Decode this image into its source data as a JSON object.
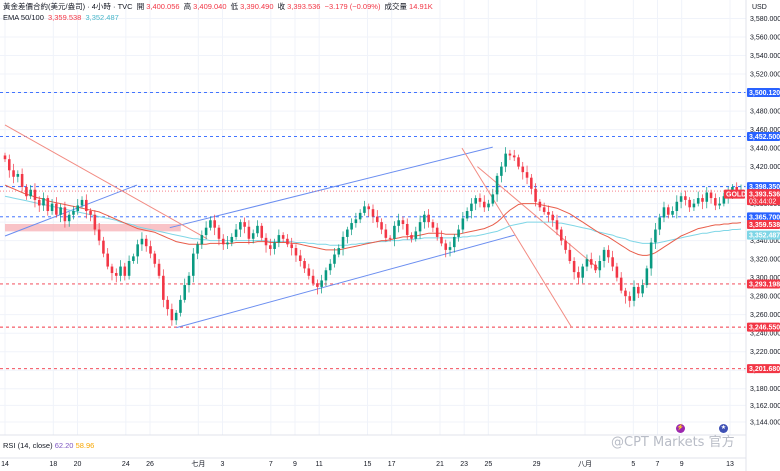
{
  "header": {
    "line1_title": "黃金差價合約(美元/盎司) · 4小時 · TVC",
    "open_label": "開",
    "open": "3,400.056",
    "high_label": "高",
    "high": "3,409.040",
    "low_label": "低",
    "low": "3,390.490",
    "close_label": "收",
    "close": "3,393.536",
    "change": "−3.179 (−0.09%)",
    "volume_label": "成交量",
    "volume": "14.91K",
    "ema_label": "EMA 50/100",
    "ema50": "3,359.538",
    "ema100": "3,352.487"
  },
  "currency": "USD",
  "rsi": {
    "label": "RSI (14, close)",
    "v1": "62.20",
    "v2": "58.96"
  },
  "watermark": "@CPT Markets 官方",
  "colors": {
    "up": "#089981",
    "down": "#f23645",
    "ema50": "#e85d4a",
    "ema100": "#7fd6e6",
    "channel": "#6b8ef0",
    "trend": "#f28b82",
    "hline_blue": "#2962ff",
    "hline_red": "#f23645",
    "gold_tag": "#f23645"
  },
  "chart_data": {
    "type": "candlestick",
    "symbol": "GOLD",
    "timeframe": "4h",
    "ylim": [
      3130,
      3600
    ],
    "yticks": [
      3144.0,
      3162.0,
      3180.0,
      3200.0,
      3220.0,
      3240.0,
      3260.0,
      3280.0,
      3300.0,
      3320.0,
      3340.0,
      3360.0,
      3380.0,
      3400.0,
      3420.0,
      3440.0,
      3460.0,
      3480.0,
      3500.0,
      3520.0,
      3540.0,
      3560.0,
      3580.0
    ],
    "ytick_labels": [
      "3,144.000",
      "3,162.000",
      "3,180.000",
      "3,200.000",
      "3,220.000",
      "3,240.000",
      "3,260.000",
      "3,280.000",
      "3,300.000",
      "3,320.000",
      "3,340.000",
      "3,360.000",
      "3,380.000",
      "3,400.000",
      "3,420.000",
      "3,440.000",
      "3,460.000",
      "3,480.000",
      "3,500.000",
      "3,520.000",
      "3,540.000",
      "3,560.000",
      "3,580.000"
    ],
    "xticks": [
      {
        "label": "14",
        "x": 0
      },
      {
        "label": "18",
        "x": 22
      },
      {
        "label": "20",
        "x": 33
      },
      {
        "label": "24",
        "x": 55
      },
      {
        "label": "26",
        "x": 66
      },
      {
        "label": "七月",
        "x": 88
      },
      {
        "label": "3",
        "x": 99
      },
      {
        "label": "7",
        "x": 121
      },
      {
        "label": "9",
        "x": 132
      },
      {
        "label": "11",
        "x": 143
      },
      {
        "label": "15",
        "x": 165
      },
      {
        "label": "17",
        "x": 176
      },
      {
        "label": "21",
        "x": 198
      },
      {
        "label": "23",
        "x": 209
      },
      {
        "label": "25",
        "x": 220
      },
      {
        "label": "29",
        "x": 242
      },
      {
        "label": "八月",
        "x": 264
      },
      {
        "label": "5",
        "x": 286
      },
      {
        "label": "7",
        "x": 297
      },
      {
        "label": "9",
        "x": 308
      },
      {
        "label": "13",
        "x": 330
      }
    ],
    "bar_range": [
      0,
      335
    ],
    "closes": [
      3428,
      3416,
      3409,
      3412,
      3398,
      3388,
      3395,
      3384,
      3378,
      3386,
      3372,
      3380,
      3368,
      3376,
      3361,
      3368,
      3372,
      3378,
      3384,
      3372,
      3368,
      3352,
      3340,
      3326,
      3312,
      3305,
      3302,
      3312,
      3302,
      3318,
      3323,
      3336,
      3342,
      3334,
      3326,
      3315,
      3302,
      3276,
      3266,
      3254,
      3262,
      3276,
      3292,
      3302,
      3326,
      3336,
      3346,
      3354,
      3362,
      3354,
      3342,
      3336,
      3338,
      3344,
      3352,
      3360,
      3355,
      3342,
      3348,
      3356,
      3343,
      3335,
      3331,
      3338,
      3346,
      3342,
      3336,
      3332,
      3324,
      3318,
      3310,
      3302,
      3294,
      3290,
      3297,
      3308,
      3315,
      3325,
      3332,
      3344,
      3352,
      3359,
      3363,
      3370,
      3377,
      3374,
      3366,
      3360,
      3352,
      3343,
      3342,
      3356,
      3362,
      3358,
      3346,
      3342,
      3350,
      3360,
      3368,
      3360,
      3354,
      3344,
      3337,
      3330,
      3333,
      3344,
      3352,
      3364,
      3372,
      3380,
      3386,
      3382,
      3376,
      3380,
      3390,
      3410,
      3420,
      3434,
      3432,
      3430,
      3420,
      3414,
      3408,
      3396,
      3382,
      3376,
      3371,
      3368,
      3362,
      3352,
      3340,
      3330,
      3318,
      3306,
      3300,
      3312,
      3320,
      3314,
      3308,
      3318,
      3330,
      3322,
      3312,
      3300,
      3286,
      3280,
      3275,
      3290,
      3283,
      3292,
      3310,
      3338,
      3352,
      3365,
      3376,
      3368,
      3372,
      3382,
      3388,
      3384,
      3376,
      3380,
      3386,
      3382,
      3392,
      3386,
      3378,
      3380,
      3388,
      3392,
      3398,
      3392,
      3393.536
    ],
    "ema50": [
      3400,
      3398,
      3396,
      3394,
      3392,
      3390,
      3389,
      3387,
      3386,
      3385,
      3383,
      3382,
      3381,
      3380,
      3379,
      3378,
      3377,
      3376,
      3375,
      3374,
      3373,
      3372,
      3371,
      3369,
      3367,
      3365,
      3363,
      3361,
      3359,
      3357,
      3355,
      3353,
      3352,
      3351,
      3350,
      3349,
      3347,
      3345,
      3343,
      3341,
      3339,
      3338,
      3337,
      3336,
      3336,
      3336,
      3336,
      3336,
      3337,
      3337,
      3337,
      3337,
      3337,
      3337,
      3338,
      3338,
      3338,
      3338,
      3338,
      3339,
      3339,
      3339,
      3338,
      3338,
      3338,
      3338,
      3338,
      3337,
      3337,
      3336,
      3335,
      3334,
      3333,
      3332,
      3331,
      3330,
      3330,
      3330,
      3330,
      3331,
      3332,
      3333,
      3334,
      3335,
      3336,
      3337,
      3338,
      3339,
      3340,
      3340,
      3341,
      3342,
      3343,
      3344,
      3344,
      3345,
      3345,
      3346,
      3347,
      3348,
      3348,
      3348,
      3348,
      3347,
      3347,
      3347,
      3347,
      3348,
      3349,
      3350,
      3351,
      3352,
      3353,
      3355,
      3357,
      3360,
      3364,
      3369,
      3373,
      3376,
      3379,
      3380,
      3380,
      3380,
      3380,
      3379,
      3378,
      3377,
      3376,
      3375,
      3373,
      3371,
      3369,
      3366,
      3363,
      3360,
      3357,
      3354,
      3351,
      3348,
      3346,
      3344,
      3341,
      3338,
      3335,
      3332,
      3329,
      3327,
      3325,
      3324,
      3324,
      3325,
      3327,
      3330,
      3333,
      3336,
      3339,
      3342,
      3345,
      3347,
      3349,
      3351,
      3353,
      3354,
      3355,
      3356,
      3357,
      3357,
      3358,
      3358,
      3359,
      3359,
      3359.538
    ],
    "ema100": [
      3388,
      3387,
      3386,
      3385,
      3384,
      3383,
      3382,
      3381,
      3380,
      3379,
      3378,
      3377,
      3376,
      3375,
      3374,
      3373,
      3372,
      3371,
      3370,
      3369,
      3368,
      3367,
      3366,
      3365,
      3364,
      3363,
      3362,
      3360,
      3359,
      3358,
      3357,
      3355,
      3354,
      3353,
      3352,
      3351,
      3350,
      3349,
      3348,
      3347,
      3346,
      3345,
      3344,
      3343,
      3342,
      3342,
      3341,
      3341,
      3340,
      3340,
      3340,
      3340,
      3340,
      3340,
      3340,
      3340,
      3340,
      3340,
      3340,
      3340,
      3340,
      3340,
      3339,
      3339,
      3339,
      3339,
      3339,
      3339,
      3338,
      3338,
      3338,
      3337,
      3337,
      3336,
      3336,
      3336,
      3335,
      3335,
      3335,
      3335,
      3335,
      3336,
      3336,
      3337,
      3337,
      3338,
      3338,
      3339,
      3339,
      3339,
      3340,
      3340,
      3340,
      3341,
      3341,
      3341,
      3342,
      3342,
      3343,
      3343,
      3343,
      3343,
      3343,
      3343,
      3343,
      3343,
      3343,
      3344,
      3344,
      3345,
      3345,
      3346,
      3347,
      3348,
      3349,
      3350,
      3352,
      3354,
      3356,
      3357,
      3358,
      3359,
      3360,
      3360,
      3360,
      3360,
      3360,
      3360,
      3360,
      3359,
      3359,
      3358,
      3357,
      3356,
      3355,
      3354,
      3353,
      3352,
      3350,
      3349,
      3348,
      3347,
      3346,
      3344,
      3343,
      3342,
      3340,
      3339,
      3338,
      3337,
      3337,
      3337,
      3337,
      3338,
      3339,
      3340,
      3341,
      3342,
      3343,
      3344,
      3345,
      3346,
      3347,
      3348,
      3348,
      3349,
      3350,
      3350,
      3351,
      3351,
      3352,
      3352,
      3352.487
    ],
    "hlines": [
      {
        "price": 3500.12,
        "label": "3,500.120",
        "color": "#2962ff",
        "tag": "#2962ff"
      },
      {
        "price": 3452.5,
        "label": "3,452.500",
        "color": "#2962ff",
        "tag": "#2962ff"
      },
      {
        "price": 3398.35,
        "label": "3,398.350",
        "color": "#2962ff",
        "tag": "#2962ff"
      },
      {
        "price": 3365.7,
        "label": "3,365.700",
        "color": "#2962ff",
        "tag": "#2962ff"
      },
      {
        "price": 3293.198,
        "label": "3,293.198",
        "color": "#f23645",
        "tag": "#f23645"
      },
      {
        "price": 3246.55,
        "label": "3,246.550",
        "color": "#f23645",
        "tag": "#f23645"
      },
      {
        "price": 3201.68,
        "label": "3,201.680",
        "color": "#f23645",
        "tag": "#f23645"
      }
    ],
    "price_tags": [
      {
        "label": "3,393.536",
        "sub": "03:44:02",
        "price": 3393.536,
        "color": "#f23645"
      },
      {
        "label": "3,359.538",
        "price": 3359.538,
        "color": "#f23645"
      },
      {
        "label": "3,352.487",
        "price": 3352.487,
        "color": "#7fd6e6"
      }
    ],
    "symbol_tag": "GOLD",
    "trendlines": [
      {
        "name": "channel-upper",
        "x1": 75,
        "y1": 3354,
        "x2": 222,
        "y2": 3441,
        "color": "#6b8ef0"
      },
      {
        "name": "channel-lower",
        "x1": 78,
        "y1": 3246,
        "x2": 232,
        "y2": 3346,
        "color": "#6b8ef0"
      },
      {
        "name": "left-channel",
        "x1": 0,
        "y1": 3345,
        "x2": 60,
        "y2": 3400,
        "color": "#6b8ef0"
      },
      {
        "name": "down-trend-left",
        "x1": 0,
        "y1": 3465,
        "x2": 92,
        "y2": 3342,
        "color": "#f28b82"
      },
      {
        "name": "down-trend-right",
        "x1": 208,
        "y1": 3440,
        "x2": 258,
        "y2": 3246,
        "color": "#f28b82"
      },
      {
        "name": "down-trend-right-2",
        "x1": 215,
        "y1": 3420,
        "x2": 270,
        "y2": 3310,
        "color": "#f28b82"
      }
    ],
    "zones": [
      {
        "name": "red-zone",
        "x1": 0,
        "x2": 80,
        "y_top": 3358,
        "y_bot": 3350,
        "color": "#f8b4b9"
      }
    ]
  }
}
